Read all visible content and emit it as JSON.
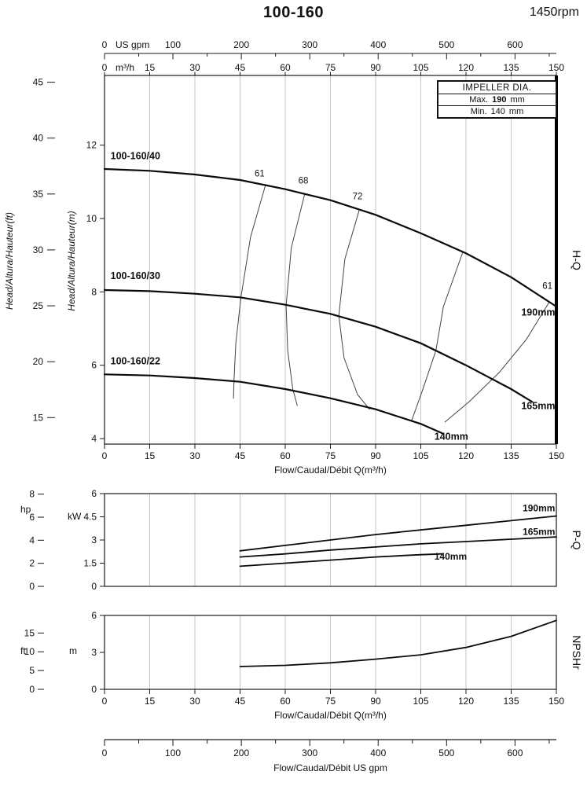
{
  "header": {
    "model": "100-160",
    "speed": "1450rpm"
  },
  "impeller_box": {
    "title": "IMPELLER DIA.",
    "max_label": "Max.",
    "max_value": "190",
    "max_unit": "mm",
    "min_label": "Min.",
    "min_value": "140",
    "min_unit": "mm"
  },
  "chart_data": [
    {
      "id": "hq",
      "type": "line",
      "title": "H-Q",
      "xlabel": "Flow/Caudal/Débit Q(m³/h)",
      "x_unit": "m³/h",
      "x_range": [
        0,
        150
      ],
      "x_ticks": [
        0,
        15,
        30,
        45,
        60,
        75,
        90,
        105,
        120,
        135,
        150
      ],
      "top_axis": {
        "unit": "US gpm",
        "ticks": [
          0,
          100,
          200,
          300,
          400,
          500,
          600
        ]
      },
      "ylabel_outer": "Head/Altura/Hauteur(ft)",
      "y_unit_outer": "ft",
      "y_ticks_ft": [
        15,
        20,
        25,
        30,
        35,
        40,
        45
      ],
      "ylabel_inner": "Head/Altura/Hauteur(m)",
      "y_unit_inner": "m",
      "y_ticks_m": [
        4,
        6,
        8,
        10,
        12
      ],
      "y_range_m": [
        3.85,
        13.9
      ],
      "grid": "vertical",
      "series": [
        {
          "name": "100-160/40",
          "impeller": "190mm",
          "points": [
            [
              0,
              11.35
            ],
            [
              15,
              11.3
            ],
            [
              30,
              11.2
            ],
            [
              45,
              11.05
            ],
            [
              60,
              10.8
            ],
            [
              75,
              10.5
            ],
            [
              90,
              10.1
            ],
            [
              105,
              9.6
            ],
            [
              120,
              9.05
            ],
            [
              135,
              8.4
            ],
            [
              150,
              7.6
            ]
          ],
          "label_at": [
            2,
            11.62
          ],
          "end_label": "190mm",
          "end_label_at": [
            149.6,
            7.35
          ],
          "end_anchor": "end"
        },
        {
          "name": "100-160/30",
          "impeller": "165mm",
          "points": [
            [
              0,
              8.05
            ],
            [
              15,
              8.02
            ],
            [
              30,
              7.95
            ],
            [
              45,
              7.85
            ],
            [
              60,
              7.65
            ],
            [
              75,
              7.4
            ],
            [
              90,
              7.05
            ],
            [
              105,
              6.6
            ],
            [
              120,
              6.0
            ],
            [
              135,
              5.35
            ],
            [
              142,
              5.0
            ]
          ],
          "label_at": [
            2,
            8.35
          ],
          "end_label": "165mm",
          "end_label_at": [
            149.6,
            4.8
          ],
          "end_anchor": "end"
        },
        {
          "name": "100-160/22",
          "impeller": "140mm",
          "points": [
            [
              0,
              5.75
            ],
            [
              15,
              5.72
            ],
            [
              30,
              5.65
            ],
            [
              45,
              5.55
            ],
            [
              60,
              5.35
            ],
            [
              75,
              5.1
            ],
            [
              90,
              4.8
            ],
            [
              105,
              4.4
            ],
            [
              112,
              4.15
            ]
          ],
          "label_at": [
            2,
            6.03
          ],
          "end_label": "140mm",
          "end_label_at": [
            109.5,
            3.97
          ],
          "end_anchor": "start"
        }
      ],
      "efficiency_contours": [
        {
          "label": "61",
          "label_at": [
            51.5,
            11.15
          ],
          "anchor": "middle",
          "points": [
            [
              53.5,
              10.93
            ],
            [
              48.5,
              9.5
            ],
            [
              45.3,
              7.85
            ],
            [
              43.6,
              6.6
            ],
            [
              43,
              5.6
            ],
            [
              42.8,
              5.1
            ]
          ]
        },
        {
          "label": "68",
          "label_at": [
            66,
            10.95
          ],
          "anchor": "middle",
          "points": [
            [
              66.5,
              10.68
            ],
            [
              62,
              9.2
            ],
            [
              60.3,
              7.63
            ],
            [
              60.8,
              6.4
            ],
            [
              62.5,
              5.35
            ],
            [
              64,
              4.9
            ]
          ]
        },
        {
          "label": "72",
          "label_at": [
            84,
            10.52
          ],
          "anchor": "middle",
          "points": [
            [
              84.5,
              10.21
            ],
            [
              79.8,
              8.9
            ],
            [
              77.8,
              7.35
            ],
            [
              79.5,
              6.2
            ],
            [
              84,
              5.2
            ],
            [
              88,
              4.8
            ]
          ]
        },
        {
          "label": "",
          "points": [
            [
              119,
              9.1
            ],
            [
              112.5,
              7.6
            ],
            [
              110,
              6.4
            ],
            [
              105.5,
              5.3
            ],
            [
              102,
              4.5
            ]
          ]
        },
        {
          "label": "61",
          "label_at": [
            148.7,
            8.08
          ],
          "anchor": "end",
          "points": [
            [
              147.5,
              7.7
            ],
            [
              140,
              6.7
            ],
            [
              131,
              5.8
            ],
            [
              121,
              5.0
            ],
            [
              113,
              4.45
            ]
          ]
        }
      ]
    },
    {
      "id": "pq",
      "type": "line",
      "title": "P-Q",
      "y_unit_inner": "kW",
      "y_ticks_kw": [
        0,
        1.5,
        3,
        4.5,
        6
      ],
      "y_range_kw": [
        0,
        6
      ],
      "y_unit_outer": "hp",
      "y_ticks_hp": [
        0,
        2,
        4,
        6,
        8
      ],
      "grid": "vertical",
      "series": [
        {
          "name": "190mm",
          "points": [
            [
              45,
              2.3
            ],
            [
              60,
              2.65
            ],
            [
              75,
              3.0
            ],
            [
              90,
              3.35
            ],
            [
              105,
              3.65
            ],
            [
              120,
              3.95
            ],
            [
              135,
              4.25
            ],
            [
              150,
              4.55
            ]
          ],
          "label_at": [
            149.6,
            4.85
          ],
          "anchor": "end"
        },
        {
          "name": "165mm",
          "points": [
            [
              45,
              1.9
            ],
            [
              60,
              2.1
            ],
            [
              75,
              2.35
            ],
            [
              90,
              2.55
            ],
            [
              105,
              2.75
            ],
            [
              120,
              2.9
            ],
            [
              135,
              3.05
            ],
            [
              150,
              3.2
            ]
          ],
          "label_at": [
            149.6,
            3.32
          ],
          "anchor": "end"
        },
        {
          "name": "140mm",
          "points": [
            [
              45,
              1.3
            ],
            [
              60,
              1.5
            ],
            [
              75,
              1.7
            ],
            [
              90,
              1.9
            ],
            [
              105,
              2.05
            ],
            [
              112,
              2.1
            ]
          ],
          "label_at": [
            109.5,
            1.72
          ],
          "anchor": "start"
        }
      ]
    },
    {
      "id": "npsh",
      "type": "line",
      "title": "NPSHr",
      "xlabel": "Flow/Caudal/Débit Q(m³/h)",
      "x_ticks": [
        0,
        15,
        30,
        45,
        60,
        75,
        90,
        105,
        120,
        135,
        150
      ],
      "y_unit_inner": "m",
      "y_ticks_m": [
        0,
        3,
        6
      ],
      "y_range_m": [
        0,
        6
      ],
      "y_unit_outer": "ft",
      "y_ticks_ft": [
        0,
        5,
        10,
        15
      ],
      "grid": "vertical",
      "points": [
        [
          45,
          1.85
        ],
        [
          60,
          1.95
        ],
        [
          75,
          2.15
        ],
        [
          90,
          2.45
        ],
        [
          105,
          2.8
        ],
        [
          120,
          3.4
        ],
        [
          135,
          4.3
        ],
        [
          150,
          5.6
        ]
      ],
      "secondary_x_axis": {
        "unit": "US gpm",
        "ticks": [
          0,
          100,
          200,
          300,
          400,
          500,
          600
        ],
        "label": "Flow/Caudal/Débit US gpm"
      }
    }
  ]
}
